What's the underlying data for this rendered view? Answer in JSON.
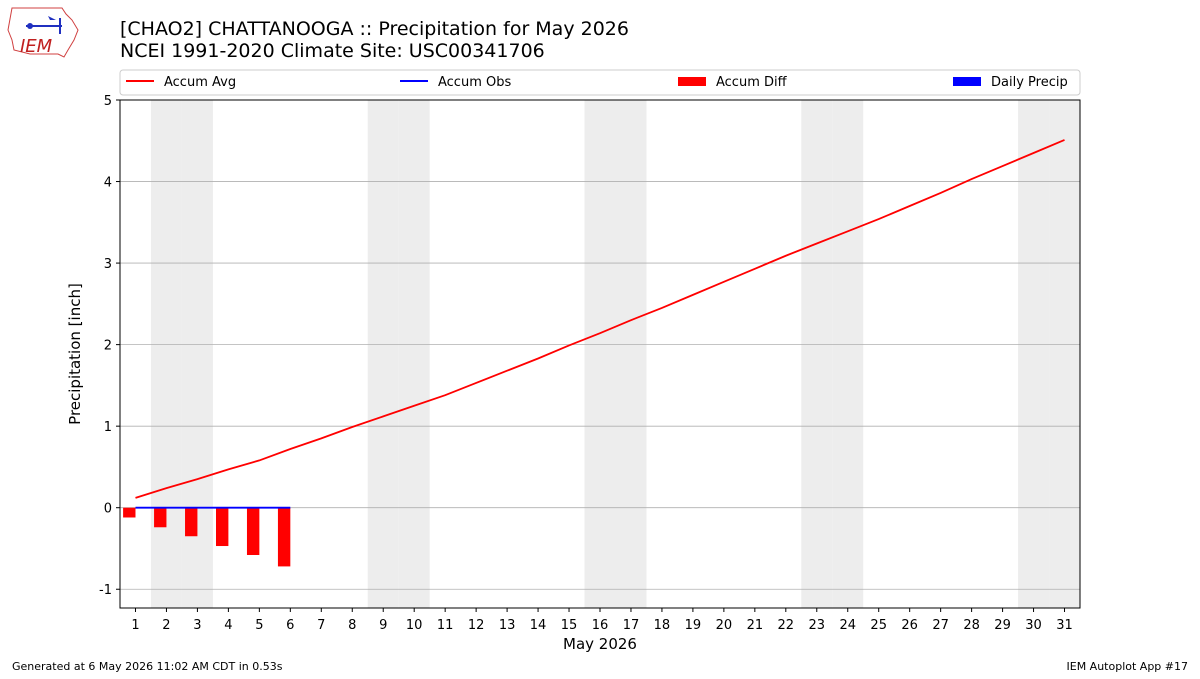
{
  "chart_data": {
    "type": "combo",
    "title": "[CHAO2] CHATTANOOGA :: Precipitation for May 2026",
    "subtitle": "NCEI 1991-2020 Climate Site: USC00341706",
    "logo_text": "IEM",
    "x_label": "May 2026",
    "y_label": "Precipitation [inch]",
    "x": [
      1,
      2,
      3,
      4,
      5,
      6,
      7,
      8,
      9,
      10,
      11,
      12,
      13,
      14,
      15,
      16,
      17,
      18,
      19,
      20,
      21,
      22,
      23,
      24,
      25,
      26,
      27,
      28,
      29,
      30,
      31
    ],
    "xlim": [
      0.5,
      31.5
    ],
    "xticks": [
      1,
      2,
      3,
      4,
      5,
      6,
      7,
      8,
      9,
      10,
      11,
      12,
      13,
      14,
      15,
      16,
      17,
      18,
      19,
      20,
      21,
      22,
      23,
      24,
      25,
      26,
      27,
      28,
      29,
      30,
      31
    ],
    "ylim": [
      -1.23,
      5
    ],
    "yticks": [
      -1,
      0,
      1,
      2,
      3,
      4,
      5
    ],
    "grid": true,
    "shaded_days": [
      2,
      3,
      9,
      10,
      16,
      17,
      23,
      24,
      30,
      31
    ],
    "series": [
      {
        "name": "Accum Avg",
        "type": "line",
        "color": "#ff0000",
        "values": [
          0.12,
          0.24,
          0.35,
          0.47,
          0.58,
          0.72,
          0.85,
          0.99,
          1.12,
          1.25,
          1.38,
          1.53,
          1.68,
          1.83,
          1.99,
          2.14,
          2.3,
          2.45,
          2.61,
          2.77,
          2.93,
          3.09,
          3.24,
          3.39,
          3.54,
          3.7,
          3.86,
          4.03,
          4.19,
          4.35,
          4.51
        ]
      },
      {
        "name": "Accum Obs",
        "type": "line",
        "color": "#0000ff",
        "values": [
          0,
          0,
          0,
          0,
          0,
          0,
          null,
          null,
          null,
          null,
          null,
          null,
          null,
          null,
          null,
          null,
          null,
          null,
          null,
          null,
          null,
          null,
          null,
          null,
          null,
          null,
          null,
          null,
          null,
          null,
          null
        ]
      },
      {
        "name": "Accum Diff",
        "type": "bar",
        "color": "#ff0000",
        "values": [
          -0.12,
          -0.24,
          -0.35,
          -0.47,
          -0.58,
          -0.72,
          null,
          null,
          null,
          null,
          null,
          null,
          null,
          null,
          null,
          null,
          null,
          null,
          null,
          null,
          null,
          null,
          null,
          null,
          null,
          null,
          null,
          null,
          null,
          null,
          null
        ]
      },
      {
        "name": "Daily Precip",
        "type": "bar",
        "color": "#0000ff",
        "values": [
          0,
          0,
          0,
          0,
          0,
          0,
          null,
          null,
          null,
          null,
          null,
          null,
          null,
          null,
          null,
          null,
          null,
          null,
          null,
          null,
          null,
          null,
          null,
          null,
          null,
          null,
          null,
          null,
          null,
          null,
          null
        ]
      }
    ],
    "footer_left": "Generated at 6 May 2026 11:02 AM CDT in 0.53s",
    "footer_right": "IEM Autoplot App #17"
  }
}
